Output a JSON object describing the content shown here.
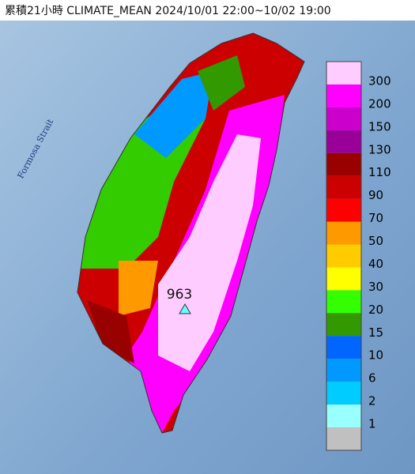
{
  "header": {
    "title": "累積21小時 CLIMATE_MEAN 2024/10/01 22:00~10/02 19:00"
  },
  "map": {
    "sea_label": "Formosa Strait",
    "max_value_label": "963"
  },
  "legend": {
    "colors": [
      "#ffccff",
      "#ff00ff",
      "#cc00cc",
      "#990099",
      "#990000",
      "#cc0000",
      "#ff0000",
      "#ff9900",
      "#ffcc00",
      "#ffff00",
      "#33ff00",
      "#339900",
      "#0066ff",
      "#0099ff",
      "#00ccff",
      "#99ffff",
      "#c0c0c0"
    ],
    "labels": [
      "300",
      "200",
      "150",
      "130",
      "110",
      "90",
      "70",
      "50",
      "40",
      "30",
      "20",
      "15",
      "10",
      "6",
      "2",
      "1"
    ]
  }
}
